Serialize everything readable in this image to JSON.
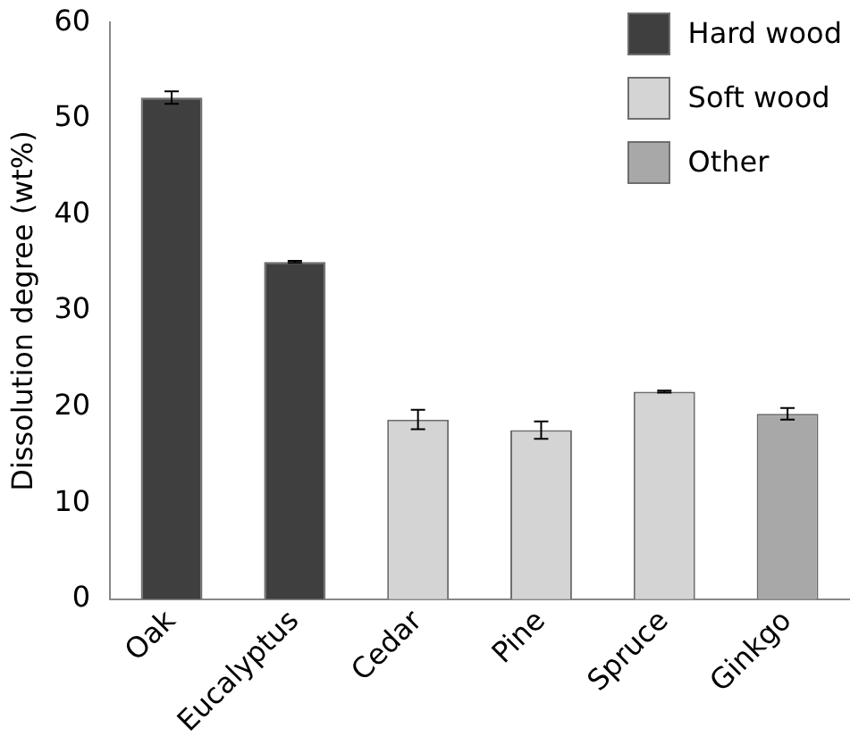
{
  "chart_data": {
    "type": "bar",
    "ylabel": "Dissolution degree (wt%)",
    "categories": [
      "Oak",
      "Eucalyptus",
      "Cedar",
      "Pine",
      "Spruce",
      "Ginkgo"
    ],
    "series": [
      {
        "name": "Hard wood",
        "color": "#3f3f3f",
        "values": [
          52.2,
          35.1,
          null,
          null,
          null,
          null
        ],
        "errors": [
          0.65,
          0.1,
          null,
          null,
          null,
          null
        ]
      },
      {
        "name": "Soft wood",
        "color": "#d4d4d4",
        "values": [
          null,
          null,
          18.7,
          17.6,
          21.6,
          null
        ],
        "errors": [
          null,
          null,
          1.0,
          0.9,
          0.1,
          null
        ]
      },
      {
        "name": "Other",
        "color": "#a8a8a8",
        "values": [
          null,
          null,
          null,
          null,
          null,
          19.3
        ],
        "errors": [
          null,
          null,
          null,
          null,
          null,
          0.6
        ]
      }
    ],
    "ylim": [
      0,
      60
    ],
    "yticks": [
      0,
      10,
      20,
      30,
      40,
      50,
      60
    ],
    "grid": false,
    "legend": "top right"
  }
}
